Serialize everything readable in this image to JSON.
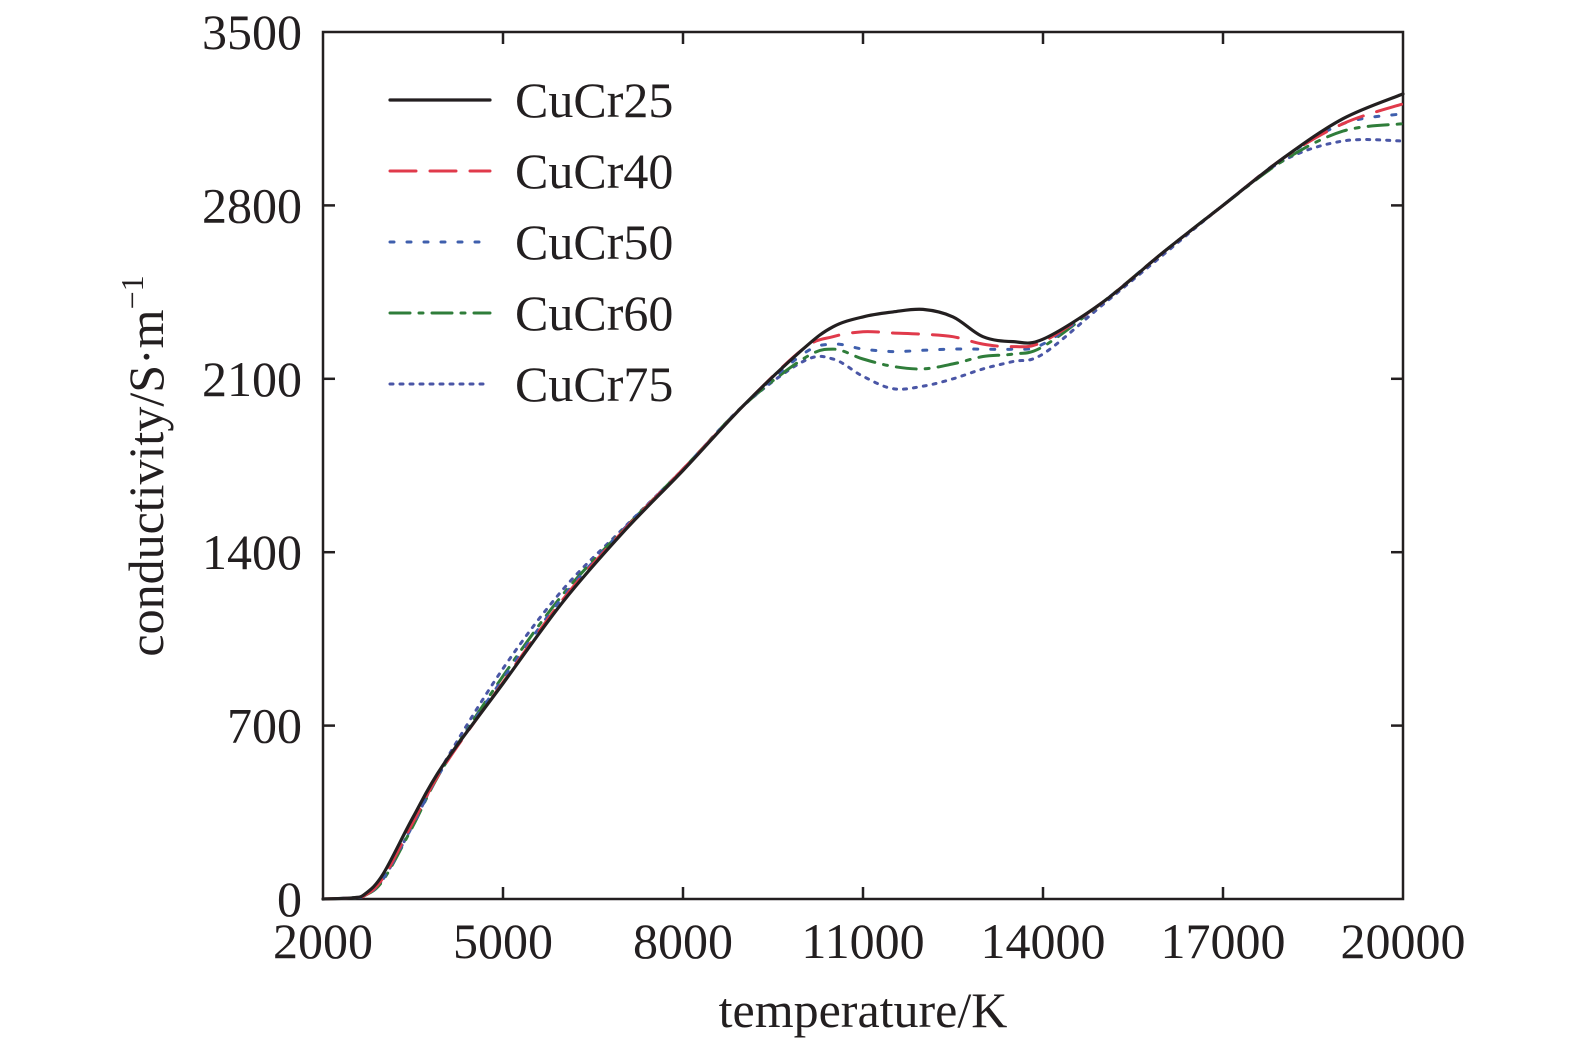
{
  "chart_data": {
    "type": "line",
    "title": "",
    "xlabel": "temperature/K",
    "ylabel": "conductivity/S·m",
    "ylabel_sup": "−1",
    "xlim": [
      2000,
      20000
    ],
    "ylim": [
      0,
      3500
    ],
    "xticks": [
      "2000",
      "5000",
      "8000",
      "11000",
      "14000",
      "17000",
      "20000"
    ],
    "yticks": [
      "0",
      "700",
      "1400",
      "2100",
      "2800",
      "3500"
    ],
    "grid": false,
    "legend_position": "top-left",
    "series": [
      {
        "name": "CuCr25",
        "color": "#231f20",
        "dash": "solid",
        "x": [
          2000,
          2500,
          2700,
          3000,
          3500,
          4000,
          5000,
          6000,
          7000,
          8000,
          9000,
          10000,
          10500,
          11000,
          11500,
          12000,
          12500,
          13000,
          13500,
          14000,
          15000,
          16000,
          17000,
          18000,
          19000,
          20000
        ],
        "y": [
          0,
          5,
          20,
          100,
          330,
          540,
          870,
          1200,
          1480,
          1730,
          1990,
          2220,
          2310,
          2350,
          2370,
          2380,
          2350,
          2270,
          2250,
          2260,
          2410,
          2610,
          2800,
          2990,
          3150,
          3250
        ]
      },
      {
        "name": "CuCr40",
        "color": "#e03a4b",
        "dash": "long-dash",
        "x": [
          2000,
          2500,
          2700,
          3000,
          3500,
          4000,
          5000,
          6000,
          7000,
          8000,
          9000,
          10000,
          10500,
          11000,
          11500,
          12000,
          12500,
          13000,
          13500,
          14000,
          15000,
          16000,
          17000,
          18000,
          19000,
          20000
        ],
        "y": [
          0,
          5,
          15,
          85,
          310,
          530,
          875,
          1210,
          1485,
          1735,
          1990,
          2220,
          2270,
          2290,
          2285,
          2280,
          2270,
          2240,
          2230,
          2250,
          2410,
          2610,
          2800,
          2990,
          3130,
          3210
        ]
      },
      {
        "name": "CuCr50",
        "color": "#3f5fad",
        "dash": "dotted",
        "x": [
          2000,
          2500,
          2700,
          3000,
          3500,
          4000,
          5000,
          6000,
          7000,
          8000,
          9000,
          10000,
          10500,
          11000,
          11500,
          12000,
          12500,
          13000,
          13500,
          14000,
          15000,
          16000,
          17000,
          18000,
          19000,
          20000
        ],
        "y": [
          0,
          5,
          15,
          80,
          300,
          530,
          890,
          1220,
          1490,
          1735,
          1990,
          2200,
          2240,
          2220,
          2210,
          2215,
          2220,
          2220,
          2220,
          2240,
          2410,
          2610,
          2800,
          2990,
          3130,
          3170
        ]
      },
      {
        "name": "CuCr60",
        "color": "#2f7d3a",
        "dash": "dash-dot",
        "x": [
          2000,
          2500,
          2700,
          3000,
          3500,
          4000,
          5000,
          6000,
          7000,
          8000,
          9000,
          10000,
          10500,
          11000,
          11500,
          12000,
          12500,
          13000,
          13500,
          14000,
          15000,
          16000,
          17000,
          18000,
          19000,
          20000
        ],
        "y": [
          0,
          5,
          15,
          75,
          295,
          530,
          900,
          1230,
          1490,
          1735,
          1990,
          2180,
          2220,
          2180,
          2150,
          2140,
          2160,
          2190,
          2200,
          2230,
          2410,
          2610,
          2800,
          2980,
          3100,
          3130
        ]
      },
      {
        "name": "CuCr75",
        "color": "#4a56a6",
        "dash": "fine-dotted",
        "x": [
          2000,
          2500,
          2700,
          3000,
          3500,
          4000,
          5000,
          6000,
          7000,
          8000,
          9000,
          10000,
          10500,
          11000,
          11500,
          12000,
          12500,
          13000,
          13500,
          14000,
          15000,
          16000,
          17000,
          18000,
          19000,
          20000
        ],
        "y": [
          0,
          5,
          15,
          80,
          300,
          540,
          930,
          1250,
          1495,
          1735,
          1990,
          2170,
          2180,
          2110,
          2060,
          2070,
          2100,
          2140,
          2170,
          2200,
          2400,
          2600,
          2800,
          2980,
          3060,
          3060
        ]
      }
    ]
  }
}
